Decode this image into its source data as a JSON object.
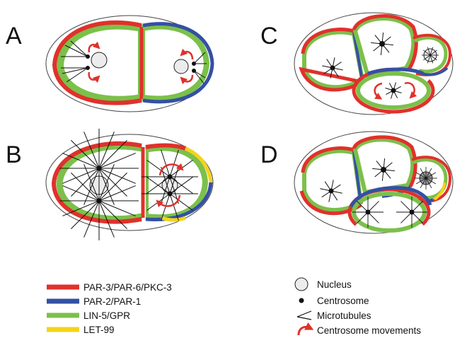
{
  "panels": [
    {
      "letter": "A"
    },
    {
      "letter": "B"
    },
    {
      "letter": "C"
    },
    {
      "letter": "D"
    }
  ],
  "legend_colors": [
    {
      "label": "PAR-3/PAR-6/PKC-3",
      "color": "#e0312b"
    },
    {
      "label": "PAR-2/PAR-1",
      "color": "#3450a4"
    },
    {
      "label": "LIN-5/GPR",
      "color": "#7cc04b"
    },
    {
      "label": "LET-99",
      "color": "#f5d31b"
    }
  ],
  "legend_symbols": [
    {
      "label": "Nucleus",
      "icon": "nucleus-circle"
    },
    {
      "label": "Centrosome",
      "icon": "centrosome-dot"
    },
    {
      "label": "Microtubules",
      "icon": "microtubules-lines"
    },
    {
      "label": "Centrosome movements",
      "icon": "red-curved-arrow"
    }
  ],
  "colors": {
    "par3": "#e0312b",
    "par2": "#3450a4",
    "lin5": "#7cc04b",
    "let99": "#f5d31b",
    "nucleus_fill": "#ececec",
    "outline": "#444444"
  }
}
